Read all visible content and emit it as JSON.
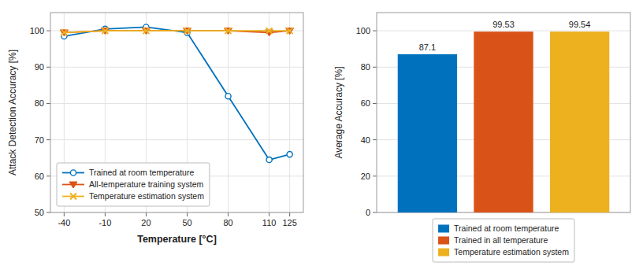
{
  "chart_data": [
    {
      "type": "line",
      "x": [
        -40,
        -10,
        20,
        50,
        80,
        110,
        125
      ],
      "xlabel": "Temperature [°C]",
      "ylabel": "Attack Detection Accuracy [%]",
      "series": [
        {
          "name": "Trained at room temperature",
          "color": "#0072BD",
          "marker": "circle",
          "values": [
            98.5,
            100.5,
            101.0,
            99.5,
            82.0,
            64.5,
            66.0
          ]
        },
        {
          "name": "All-temperature training system",
          "color": "#D95319",
          "marker": "triangle-down",
          "values": [
            99.5,
            100.0,
            100.0,
            100.0,
            100.0,
            99.5,
            100.0
          ]
        },
        {
          "name": "Temperature estimation system",
          "color": "#EDB120",
          "marker": "x",
          "values": [
            99.5,
            100.0,
            100.0,
            100.0,
            100.0,
            100.0,
            100.0
          ]
        }
      ],
      "xlim": [
        -50,
        135
      ],
      "xticks": [
        -40,
        -10,
        20,
        50,
        80,
        110,
        125
      ],
      "ylim": [
        50,
        105
      ],
      "yticks": [
        50,
        60,
        70,
        80,
        90,
        100
      ],
      "grid": true,
      "legend": "lower left"
    },
    {
      "type": "bar",
      "categories": [
        null
      ],
      "ylabel": "Average Accuracy [%]",
      "series": [
        {
          "name": "Trained at room temperature",
          "color": "#0072BD",
          "values": [
            87.1
          ]
        },
        {
          "name": "Trained in all temperature",
          "color": "#D95319",
          "values": [
            99.53
          ]
        },
        {
          "name": "Temperature estimation system",
          "color": "#EDB120",
          "values": [
            99.54
          ]
        }
      ],
      "ylim": [
        0,
        110
      ],
      "yticks": [
        0,
        20,
        40,
        60,
        80,
        100
      ],
      "grid": true,
      "legend": "bottom",
      "data_labels": true,
      "tick_labels": "y"
    }
  ]
}
